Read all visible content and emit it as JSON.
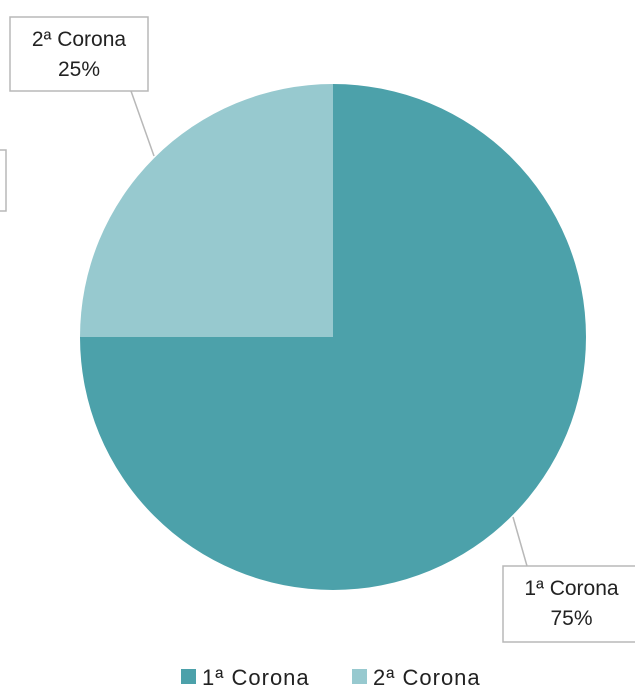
{
  "chart_data": {
    "type": "pie",
    "slices": [
      {
        "label": "1ª Corona",
        "value": 75,
        "value_label": "75%",
        "color": "#4ca1aa"
      },
      {
        "label": "2ª Corona",
        "value": 25,
        "value_label": "25%",
        "color": "#97c9cf"
      }
    ],
    "start_angle": "12 o'clock",
    "direction": "clockwise",
    "legend": {
      "position": "bottom",
      "entries": [
        "1ª Corona",
        "2ª Corona"
      ]
    }
  }
}
